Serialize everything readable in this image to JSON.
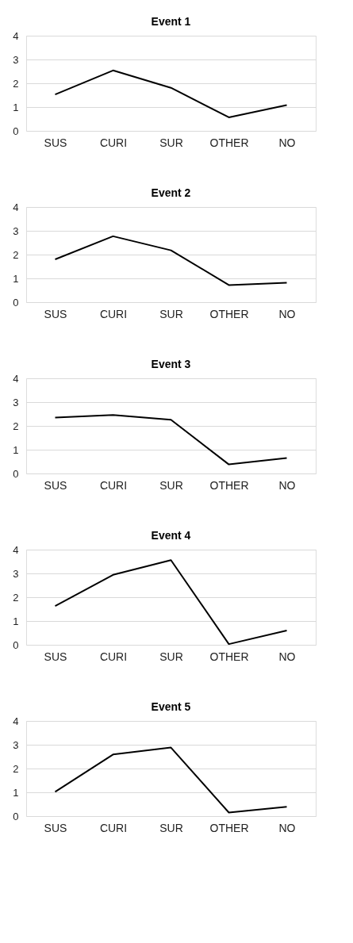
{
  "chart_data": [
    {
      "type": "line",
      "title": "Event 1",
      "categories": [
        "SUS",
        "CURI",
        "SUR",
        "OTHER",
        "NO"
      ],
      "series": [
        {
          "color": "#000000",
          "values": [
            1.53,
            2.54,
            1.81,
            0.57,
            1.08
          ]
        }
      ],
      "ylim": [
        0,
        4
      ],
      "yticks": [
        0,
        1,
        2,
        3,
        4
      ],
      "grid": "y",
      "line_style": "solid"
    },
    {
      "type": "line",
      "title": "Event 2",
      "categories": [
        "SUS",
        "CURI",
        "SUR",
        "OTHER",
        "NO"
      ],
      "series": [
        {
          "color": "#000000",
          "values": [
            1.8,
            2.77,
            2.18,
            0.72,
            0.82
          ]
        }
      ],
      "ylim": [
        0,
        4
      ],
      "yticks": [
        0,
        1,
        2,
        3,
        4
      ],
      "grid": "y",
      "line_style": "solid"
    },
    {
      "type": "line",
      "title": "Event 3",
      "categories": [
        "SUS",
        "CURI",
        "SUR",
        "OTHER",
        "NO"
      ],
      "series": [
        {
          "color": "#000000",
          "values": [
            2.35,
            2.46,
            2.26,
            0.38,
            0.65
          ]
        }
      ],
      "ylim": [
        0,
        4
      ],
      "yticks": [
        0,
        1,
        2,
        3,
        4
      ],
      "grid": "y",
      "line_style": "solid"
    },
    {
      "type": "line",
      "title": "Event 4",
      "categories": [
        "SUS",
        "CURI",
        "SUR",
        "OTHER",
        "NO"
      ],
      "series": [
        {
          "color": "#000000",
          "values": [
            1.63,
            2.94,
            3.56,
            0.03,
            0.6
          ]
        }
      ],
      "ylim": [
        0,
        4
      ],
      "yticks": [
        0,
        1,
        2,
        3,
        4
      ],
      "grid": "y",
      "line_style": "solid"
    },
    {
      "type": "line",
      "title": "Event 5",
      "categories": [
        "SUS",
        "CURI",
        "SUR",
        "OTHER",
        "NO"
      ],
      "series": [
        {
          "color": "#000000",
          "values": [
            1.02,
            2.59,
            2.88,
            0.15,
            0.39
          ]
        }
      ],
      "ylim": [
        0,
        4
      ],
      "yticks": [
        0,
        1,
        2,
        3,
        4
      ],
      "grid": "y",
      "line_style": "solid"
    }
  ]
}
